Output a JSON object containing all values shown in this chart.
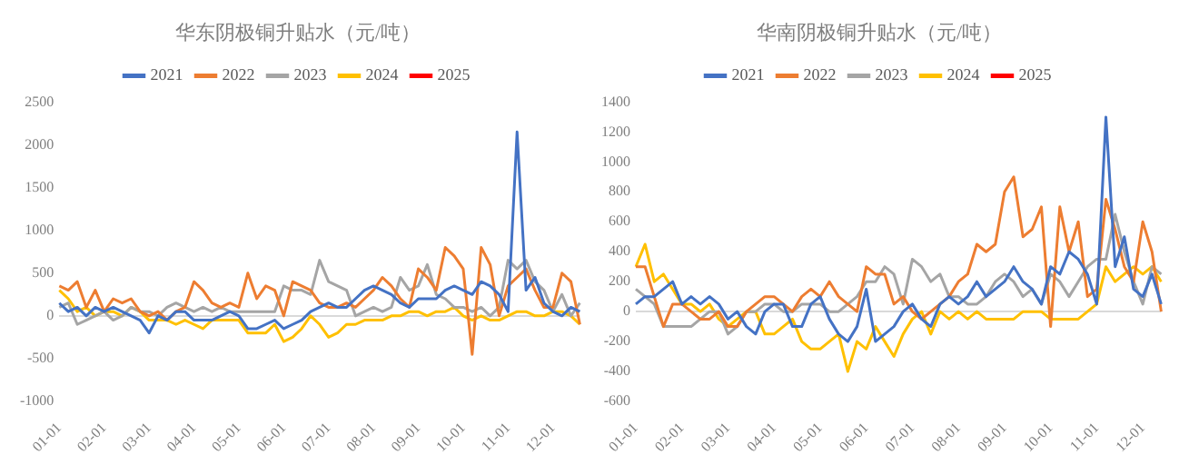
{
  "chart_data": [
    {
      "type": "line",
      "title": "华东阴极铜升贴水（元/吨）",
      "legend": "top",
      "marker": "none",
      "line_style": "solid",
      "categories": [
        "01-01",
        null,
        null,
        null,
        null,
        "02-01",
        null,
        null,
        null,
        null,
        "03-01",
        null,
        null,
        null,
        null,
        "04-01",
        null,
        null,
        null,
        null,
        "05-01",
        null,
        null,
        null,
        null,
        "06-01",
        null,
        null,
        null,
        null,
        "07-01",
        null,
        null,
        null,
        null,
        "08-01",
        null,
        null,
        null,
        null,
        "09-01",
        null,
        null,
        null,
        null,
        "10-01",
        null,
        null,
        null,
        null,
        "11-01",
        null,
        null,
        null,
        null,
        "12-01",
        null,
        null,
        null
      ],
      "ylim": [
        -1000,
        2500
      ],
      "yticks": [
        -1000,
        -500,
        0,
        500,
        1000,
        1500,
        2000,
        2500
      ],
      "series": [
        {
          "name": "2021",
          "color": "#4472c4",
          "values": [
            150,
            50,
            100,
            0,
            100,
            50,
            100,
            50,
            0,
            -50,
            -200,
            0,
            -50,
            50,
            50,
            -50,
            -50,
            -50,
            0,
            50,
            0,
            -150,
            -150,
            -100,
            -50,
            -150,
            -100,
            -50,
            50,
            100,
            150,
            100,
            100,
            200,
            300,
            350,
            300,
            250,
            150,
            100,
            200,
            200,
            200,
            300,
            350,
            300,
            250,
            400,
            350,
            250,
            50,
            2150,
            300,
            450,
            150,
            50,
            0,
            100,
            50
          ]
        },
        {
          "name": "2022",
          "color": "#ed7d31",
          "values": [
            350,
            300,
            400,
            100,
            300,
            50,
            200,
            150,
            200,
            50,
            0,
            50,
            -50,
            50,
            100,
            400,
            300,
            150,
            100,
            150,
            100,
            500,
            200,
            350,
            300,
            0,
            400,
            350,
            300,
            150,
            100,
            100,
            150,
            100,
            200,
            300,
            450,
            350,
            200,
            100,
            550,
            450,
            300,
            800,
            700,
            550,
            -450,
            800,
            600,
            0,
            350,
            450,
            550,
            300,
            100,
            100,
            500,
            400,
            -100
          ]
        },
        {
          "name": "2023",
          "color": "#a5a5a5",
          "values": [
            100,
            150,
            -100,
            -50,
            0,
            50,
            -50,
            0,
            100,
            50,
            50,
            0,
            100,
            150,
            100,
            50,
            100,
            50,
            100,
            50,
            50,
            50,
            50,
            50,
            50,
            350,
            300,
            300,
            250,
            650,
            400,
            350,
            300,
            0,
            50,
            100,
            50,
            100,
            450,
            300,
            350,
            600,
            250,
            200,
            100,
            100,
            50,
            100,
            0,
            100,
            650,
            550,
            650,
            400,
            300,
            50,
            250,
            0,
            150
          ]
        },
        {
          "name": "2024",
          "color": "#ffc000",
          "values": [
            300,
            200,
            50,
            100,
            0,
            50,
            50,
            0,
            100,
            50,
            -50,
            -50,
            -50,
            -100,
            -50,
            -100,
            -150,
            -50,
            -50,
            -50,
            -50,
            -200,
            -200,
            -200,
            -100,
            -300,
            -250,
            -150,
            0,
            -100,
            -250,
            -200,
            -100,
            -100,
            -50,
            -50,
            -50,
            0,
            0,
            50,
            50,
            0,
            50,
            50,
            100,
            0,
            -50,
            0,
            -50,
            -50,
            0,
            50,
            50,
            0,
            0,
            50,
            50,
            0,
            -100
          ]
        },
        {
          "name": "2025",
          "color": "#ff0000",
          "values": [
            null,
            null,
            null,
            null,
            null,
            null,
            null,
            null,
            null,
            null,
            null,
            null,
            null,
            null,
            null,
            null,
            null,
            null,
            null,
            null,
            null,
            null,
            null,
            null,
            null,
            null,
            null,
            null,
            null,
            null,
            null,
            null,
            null,
            null,
            null,
            null,
            null,
            null,
            null,
            null,
            null,
            null,
            null,
            null,
            null,
            null,
            null,
            null,
            null,
            null,
            null,
            null,
            null,
            null,
            null,
            null,
            null,
            null,
            null
          ]
        }
      ]
    },
    {
      "type": "line",
      "title": "华南阴极铜升贴水（元/吨）",
      "legend": "top",
      "marker": "none",
      "line_style": "solid",
      "categories": [
        "01-01",
        null,
        null,
        null,
        null,
        "02-01",
        null,
        null,
        null,
        null,
        "03-01",
        null,
        null,
        null,
        null,
        "04-01",
        null,
        null,
        null,
        null,
        "05-01",
        null,
        null,
        null,
        null,
        "06-01",
        null,
        null,
        null,
        null,
        "07-01",
        null,
        null,
        null,
        null,
        "08-01",
        null,
        null,
        null,
        null,
        "09-01",
        null,
        null,
        null,
        null,
        "10-01",
        null,
        null,
        null,
        null,
        "11-01",
        null,
        null,
        null,
        null,
        "12-01",
        null,
        null
      ],
      "ylim": [
        -600,
        1400
      ],
      "yticks": [
        -600,
        -400,
        -200,
        0,
        200,
        400,
        600,
        800,
        1000,
        1200,
        1400
      ],
      "series": [
        {
          "name": "2021",
          "color": "#4472c4",
          "values": [
            50,
            100,
            100,
            150,
            200,
            50,
            100,
            50,
            100,
            50,
            -50,
            0,
            -100,
            -150,
            0,
            50,
            50,
            -100,
            -100,
            50,
            100,
            -50,
            -150,
            -200,
            -100,
            150,
            -200,
            -150,
            -100,
            0,
            50,
            -50,
            -100,
            50,
            100,
            50,
            100,
            200,
            100,
            150,
            200,
            300,
            200,
            150,
            50,
            300,
            250,
            400,
            350,
            250,
            50,
            1300,
            300,
            500,
            150,
            100,
            250,
            50
          ]
        },
        {
          "name": "2022",
          "color": "#ed7d31",
          "values": [
            300,
            300,
            100,
            -100,
            50,
            50,
            0,
            -50,
            -50,
            0,
            -100,
            -100,
            0,
            50,
            100,
            100,
            50,
            0,
            100,
            150,
            100,
            200,
            100,
            50,
            0,
            300,
            250,
            250,
            50,
            100,
            0,
            -50,
            0,
            50,
            100,
            200,
            250,
            450,
            400,
            450,
            800,
            900,
            500,
            550,
            700,
            -100,
            700,
            400,
            600,
            100,
            150,
            750,
            550,
            300,
            200,
            600,
            400,
            0
          ]
        },
        {
          "name": "2023",
          "color": "#a5a5a5",
          "values": [
            150,
            100,
            50,
            -100,
            -100,
            -100,
            -100,
            -50,
            0,
            0,
            -150,
            -100,
            0,
            0,
            50,
            50,
            0,
            0,
            50,
            50,
            50,
            0,
            0,
            50,
            100,
            200,
            200,
            300,
            250,
            50,
            350,
            300,
            200,
            250,
            100,
            100,
            50,
            50,
            100,
            200,
            250,
            200,
            100,
            150,
            50,
            250,
            200,
            100,
            200,
            300,
            350,
            350,
            650,
            400,
            200,
            50,
            300,
            250
          ]
        },
        {
          "name": "2024",
          "color": "#ffc000",
          "values": [
            300,
            450,
            200,
            250,
            150,
            50,
            50,
            0,
            50,
            -50,
            -100,
            -50,
            0,
            0,
            -150,
            -150,
            -100,
            -50,
            -200,
            -250,
            -250,
            -200,
            -150,
            -400,
            -200,
            -250,
            -100,
            -200,
            -300,
            -150,
            -50,
            0,
            -150,
            0,
            -50,
            0,
            -50,
            0,
            -50,
            -50,
            -50,
            -50,
            0,
            0,
            0,
            -50,
            -50,
            -50,
            -50,
            0,
            50,
            300,
            200,
            250,
            300,
            250,
            300,
            200
          ]
        },
        {
          "name": "2025",
          "color": "#ff0000",
          "values": [
            null,
            null,
            null,
            null,
            null,
            null,
            null,
            null,
            null,
            null,
            null,
            null,
            null,
            null,
            null,
            null,
            null,
            null,
            null,
            null,
            null,
            null,
            null,
            null,
            null,
            null,
            null,
            null,
            null,
            null,
            null,
            null,
            null,
            null,
            null,
            null,
            null,
            null,
            null,
            null,
            null,
            null,
            null,
            null,
            null,
            null,
            null,
            null,
            null,
            null,
            null,
            null,
            null,
            null,
            null,
            null,
            null,
            null
          ]
        }
      ]
    }
  ]
}
